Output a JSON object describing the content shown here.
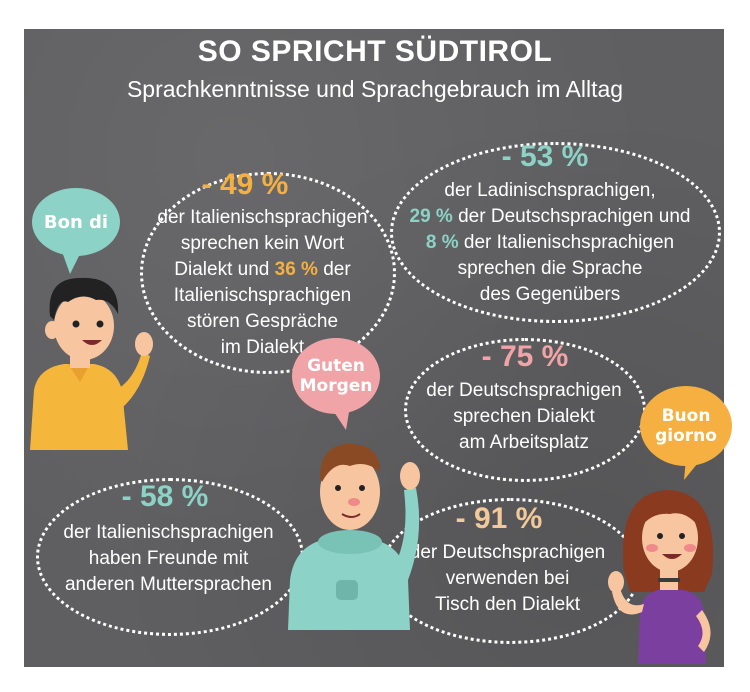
{
  "header": {
    "title": "SO SPRICHT SÜDTIROL",
    "subtitle": "Sprachkenntnisse und Sprachgebrauch im Alltag"
  },
  "speech_bubbles": {
    "bon_di": "Bon di",
    "guten_morgen_line1": "Guten",
    "guten_morgen_line2": "Morgen",
    "buon_giorno_line1": "Buon",
    "buon_giorno_line2": "giorno"
  },
  "stats": {
    "s1": {
      "percent": "- 49 %",
      "line1": "der Italienischsprachigen",
      "line2": "sprechen kein Wort",
      "line3_a": "Dialekt und ",
      "line3_hl": "36 %",
      "line3_b": " der",
      "line4": "Italienischsprachigen",
      "line5": "stören Gespräche",
      "line6": "im Dialekt"
    },
    "s2": {
      "percent": "- 53 %",
      "line1": "der Ladinischsprachigen,",
      "line2_hl": "29 %",
      "line2_b": " der Deutschsprachigen und",
      "line3_hl": "8 %",
      "line3_b": " der Italienischsprachigen",
      "line4": "sprechen die Sprache",
      "line5": "des Gegenübers"
    },
    "s3": {
      "percent": "- 75 %",
      "line1": "der Deutschsprachigen",
      "line2": "sprechen Dialekt",
      "line3": "am Arbeitsplatz"
    },
    "s4": {
      "percent": "- 58 %",
      "line1": "der Italienischsprachigen",
      "line2": "haben Freunde mit",
      "line3": "anderen Muttersprachen"
    },
    "s5": {
      "percent": "- 91 %",
      "line1": "der Deutschsprachigen",
      "line2": "verwenden bei",
      "line3": "Tisch den Dialekt"
    }
  },
  "colors": {
    "board": "#5f5f61",
    "orange": "#f5b041",
    "teal": "#8cd2c6",
    "pink": "#f0a4a8",
    "peach": "#f2c99a"
  }
}
